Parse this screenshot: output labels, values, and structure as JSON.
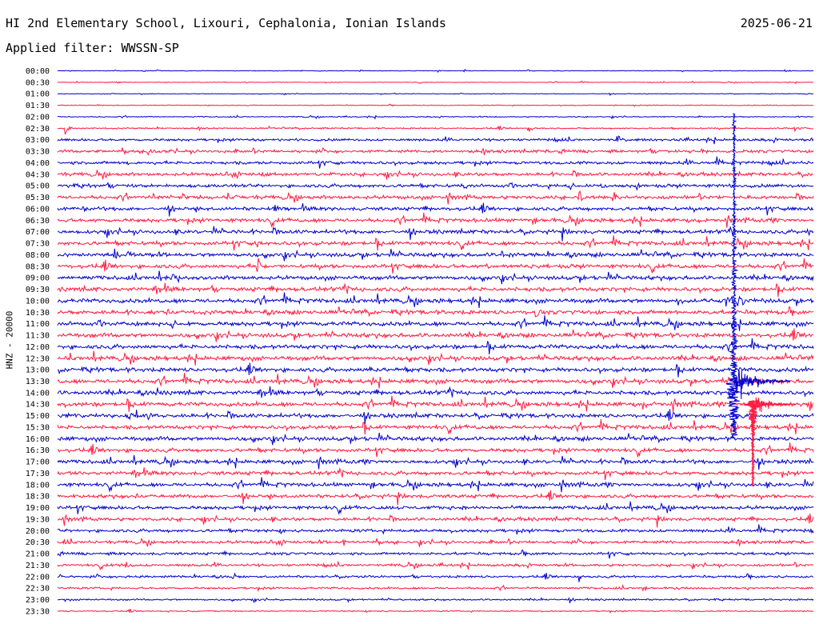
{
  "header": {
    "title": "HI 2nd Elementary School, Lixouri, Cephalonia, Ionian Islands",
    "date": "2025-06-21",
    "filter": "Applied filter: WWSSN-SP"
  },
  "colors": {
    "traceA": "#0000cc",
    "traceB": "#ff1a40",
    "background": "#ffffff"
  },
  "chart_data": {
    "type": "line",
    "title": "",
    "xlabel": "",
    "ylabel": "HNZ - 20000",
    "row_labels": [
      "00:00",
      "00:30",
      "01:00",
      "01:30",
      "02:00",
      "02:30",
      "03:00",
      "03:30",
      "04:00",
      "04:30",
      "05:00",
      "05:30",
      "06:00",
      "06:30",
      "07:00",
      "07:30",
      "08:00",
      "08:30",
      "09:00",
      "09:30",
      "10:00",
      "10:30",
      "11:00",
      "11:30",
      "12:00",
      "12:30",
      "13:00",
      "13:30",
      "14:00",
      "14:30",
      "15:00",
      "15:30",
      "16:00",
      "16:30",
      "17:00",
      "17:30",
      "18:00",
      "18:30",
      "19:00",
      "19:30",
      "20:00",
      "20:30",
      "21:00",
      "21:30",
      "22:00",
      "22:30",
      "23:00",
      "23:30"
    ],
    "row_minutes": 30,
    "row_noise": [
      0.3,
      0.3,
      0.3,
      0.4,
      0.5,
      0.7,
      1.2,
      1.4,
      1.5,
      1.6,
      1.6,
      1.7,
      1.7,
      1.8,
      1.8,
      1.9,
      1.9,
      1.9,
      1.9,
      2.0,
      2.0,
      2.0,
      2.0,
      2.0,
      2.0,
      2.0,
      2.0,
      2.0,
      2.0,
      2.0,
      1.9,
      1.9,
      1.9,
      1.8,
      1.8,
      1.8,
      1.8,
      1.7,
      1.7,
      1.6,
      1.5,
      1.4,
      1.3,
      1.2,
      1.1,
      1.0,
      0.8,
      0.6
    ],
    "events": [
      {
        "row": 0,
        "minute": 18.6,
        "amp": 4
      },
      {
        "row": 4,
        "minute": 3.1,
        "amp": 3
      },
      {
        "row": 5,
        "minute": 0.3,
        "amp": 8
      },
      {
        "row": 5,
        "minute": 18.7,
        "amp": 7
      },
      {
        "row": 6,
        "minute": 22.2,
        "amp": 9
      },
      {
        "row": 7,
        "minute": 3.5,
        "amp": 12
      },
      {
        "row": 8,
        "minute": 2.7,
        "amp": 8
      },
      {
        "row": 10,
        "minute": 16.1,
        "amp": 6
      },
      {
        "row": 10,
        "minute": 23.0,
        "amp": 7
      },
      {
        "row": 11,
        "minute": 3.8,
        "amp": 8
      },
      {
        "row": 11,
        "minute": 7.1,
        "amp": 6
      },
      {
        "row": 11,
        "minute": 20.7,
        "amp": 8
      },
      {
        "row": 12,
        "minute": 1.0,
        "amp": 7
      },
      {
        "row": 12,
        "minute": 8.6,
        "amp": 9
      },
      {
        "row": 13,
        "minute": 25.4,
        "amp": 7
      },
      {
        "row": 14,
        "minute": 29.8,
        "amp": 7
      },
      {
        "row": 15,
        "minute": 7.9,
        "amp": 10
      },
      {
        "row": 16,
        "minute": 17.6,
        "amp": 6
      },
      {
        "row": 17,
        "minute": 7.9,
        "amp": 18
      },
      {
        "row": 17,
        "minute": 17.0,
        "amp": 6
      },
      {
        "row": 18,
        "minute": 4.5,
        "amp": 7
      },
      {
        "row": 20,
        "minute": 24.6,
        "amp": 7
      },
      {
        "row": 20,
        "minute": 26.5,
        "amp": 7
      },
      {
        "row": 21,
        "minute": 19.0,
        "amp": 9
      },
      {
        "row": 26,
        "minute": 12.4,
        "amp": 5
      },
      {
        "row": 28,
        "minute": 3.9,
        "amp": 10
      },
      {
        "row": 29,
        "minute": 23.2,
        "amp": 7
      },
      {
        "row": 30,
        "minute": 2.7,
        "amp": 6
      }
    ],
    "earthquakes": [
      {
        "label": "primary",
        "row": 4,
        "minute": 26.85,
        "peak_row": 27,
        "duration_rows": 22,
        "amp": 260
      },
      {
        "label": "aftershock",
        "row": 29,
        "minute": 27.6,
        "peak_row": 29,
        "duration_rows": 6,
        "amp": 90
      }
    ]
  }
}
